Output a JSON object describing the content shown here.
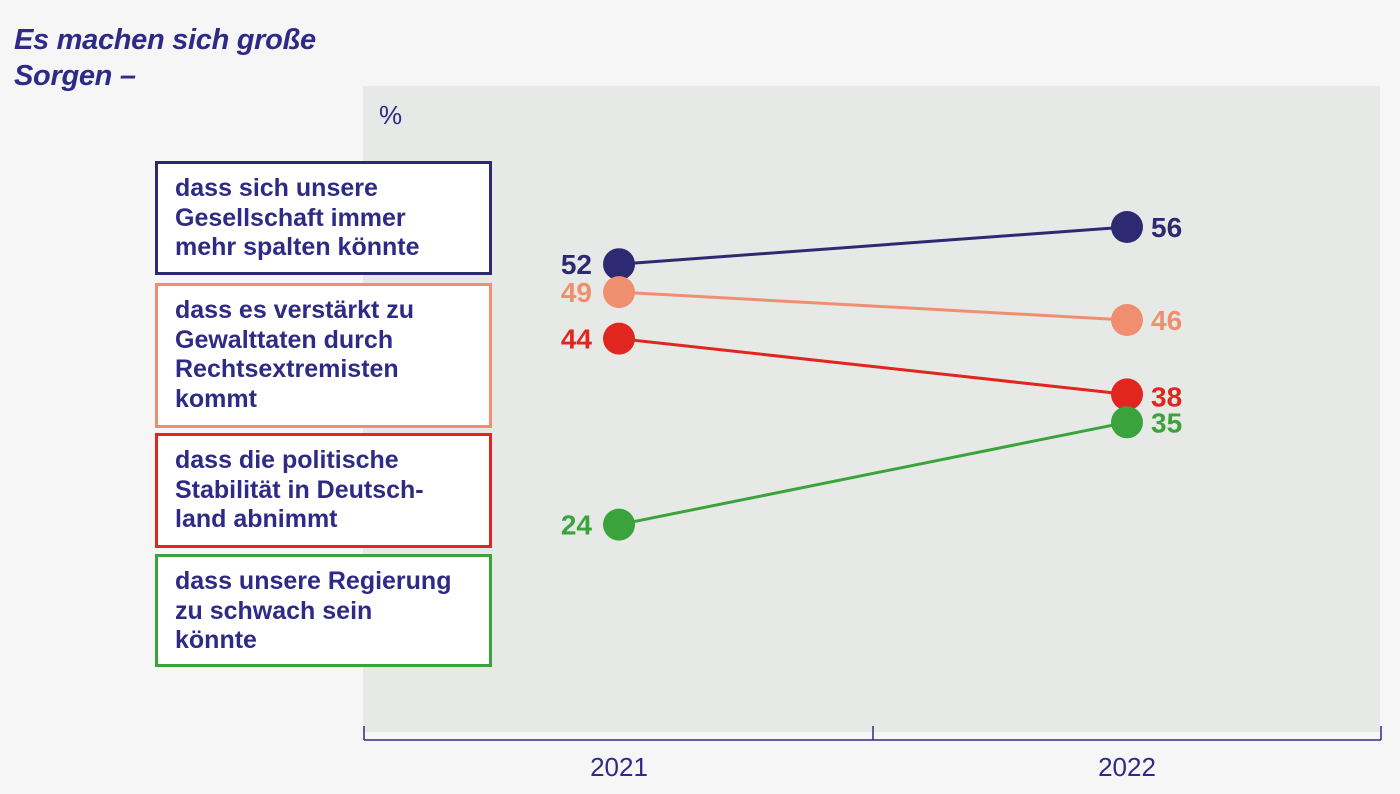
{
  "title": "Es machen sich große Sorgen –",
  "colors": {
    "background": "#f6f6f6",
    "plot_background": "#e7e9e6",
    "text": "#2e2a85",
    "axis": "#2e2a85"
  },
  "chart_data": {
    "type": "line",
    "title": "Es machen sich große Sorgen –",
    "ylabel": "%",
    "xlabel": "",
    "x": [
      "2021",
      "2022"
    ],
    "series": [
      {
        "name": "dass sich unsere Gesellschaft immer mehr spalten könnte",
        "legend_text": "dass sich unsere\nGesellschaft immer\nmehr spalten könnte",
        "values": [
          52,
          56
        ],
        "color": "#2d2a72"
      },
      {
        "name": "dass es verstärkt zu Gewalttaten durch Rechtsextremisten kommt",
        "legend_text": "dass es verstärkt zu\nGewalttaten durch\nRechtsextremisten\nkommt",
        "values": [
          49,
          46
        ],
        "color": "#ef8f6f"
      },
      {
        "name": "dass die politische Stabilität in Deutschland abnimmt",
        "legend_text": "dass die politische\nStabilität in Deutsch-\nland abnimmt",
        "values": [
          44,
          38
        ],
        "color": "#e0261e"
      },
      {
        "name": "dass unsere Regierung zu schwach sein könnte",
        "legend_text": "dass unsere Regierung\nzu schwach sein\nkönnte",
        "values": [
          24,
          35
        ],
        "color": "#3aa33b"
      }
    ],
    "legend": "left",
    "grid": false,
    "ylim": [
      14,
      66
    ]
  }
}
